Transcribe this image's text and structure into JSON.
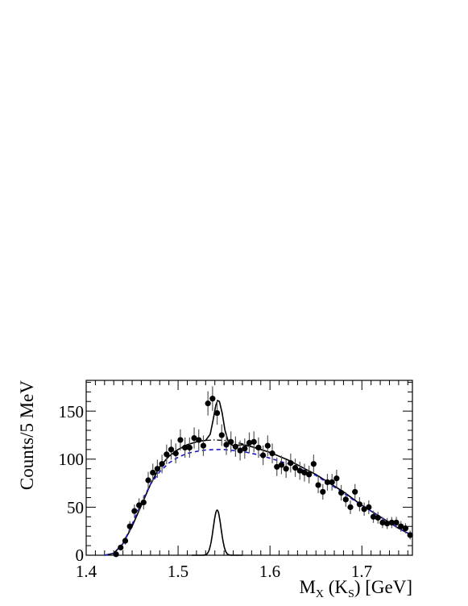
{
  "chart_data": {
    "type": "scatter",
    "title": "",
    "xlabel_parts": {
      "m": "M",
      "m_sub": "X",
      "open": " (K",
      "k_sub": "S",
      "close": ") [GeV]"
    },
    "ylabel": "Counts/5 MeV",
    "xlim": [
      1.4,
      1.755
    ],
    "ylim": [
      0,
      182
    ],
    "x_ticks": [
      "1.4",
      "1.5",
      "1.6",
      "1.7"
    ],
    "y_ticks": [
      "0",
      "50",
      "100",
      "150"
    ],
    "grid": false,
    "legend": "none",
    "colors": {
      "data": "#000000",
      "total_fit": "#000000",
      "background_blue": "#1a1acc",
      "background_black": "#000000",
      "signal": "#000000"
    },
    "series": [
      {
        "kind": "data_points_with_errors",
        "x": [
          1.4325,
          1.4375,
          1.4425,
          1.4475,
          1.4525,
          1.4575,
          1.4625,
          1.4675,
          1.4725,
          1.4775,
          1.4825,
          1.4875,
          1.4925,
          1.4975,
          1.5025,
          1.5075,
          1.5125,
          1.5175,
          1.5225,
          1.5275,
          1.5325,
          1.5375,
          1.5425,
          1.5475,
          1.5525,
          1.5575,
          1.5625,
          1.5675,
          1.5725,
          1.5775,
          1.5825,
          1.5875,
          1.5925,
          1.5975,
          1.6025,
          1.6075,
          1.6125,
          1.6175,
          1.6225,
          1.6275,
          1.6325,
          1.6375,
          1.6425,
          1.6475,
          1.6525,
          1.6575,
          1.6625,
          1.6675,
          1.6725,
          1.6775,
          1.6825,
          1.6875,
          1.6925,
          1.6975,
          1.7025,
          1.7075,
          1.7125,
          1.7175,
          1.7225,
          1.7275,
          1.7325,
          1.7375,
          1.7425,
          1.7475,
          1.7525
        ],
        "y": [
          1,
          8,
          15,
          30,
          46,
          52,
          55,
          78,
          86,
          90,
          95,
          105,
          110,
          106,
          120,
          112,
          112,
          122,
          120,
          114,
          158,
          163,
          148,
          125,
          115,
          118,
          113,
          109,
          111,
          117,
          118,
          112,
          104,
          114,
          106,
          92,
          94,
          90,
          96,
          91,
          88,
          86,
          84,
          95,
          73,
          66,
          76,
          76,
          80,
          65,
          58,
          50,
          66,
          53,
          48,
          50,
          40,
          39,
          34,
          33,
          34,
          34,
          30,
          28,
          21
        ],
        "yerr": [
          1,
          3,
          4,
          5.5,
          6.8,
          7.2,
          7.4,
          8.8,
          9.3,
          9.5,
          9.7,
          10.2,
          10.5,
          10.3,
          11,
          10.6,
          10.6,
          11,
          11,
          10.7,
          12.6,
          12.8,
          12.2,
          11.2,
          10.7,
          10.9,
          10.6,
          10.4,
          10.5,
          10.8,
          10.9,
          10.6,
          10.2,
          10.7,
          10.3,
          9.6,
          9.7,
          9.5,
          9.8,
          9.5,
          9.4,
          9.3,
          9.2,
          9.7,
          8.5,
          8.1,
          8.7,
          8.7,
          8.9,
          8.1,
          7.6,
          7.1,
          8.1,
          7.3,
          6.9,
          7.1,
          6.3,
          6.2,
          5.8,
          5.7,
          5.8,
          5.8,
          5.5,
          5.3,
          4.6
        ]
      },
      {
        "kind": "total_fit",
        "line": "solid",
        "x": [
          1.42,
          1.43,
          1.44,
          1.45,
          1.46,
          1.47,
          1.48,
          1.49,
          1.5,
          1.51,
          1.52,
          1.525,
          1.53,
          1.535,
          1.538,
          1.541,
          1.543,
          1.545,
          1.548,
          1.551,
          1.555,
          1.56,
          1.57,
          1.58,
          1.59,
          1.6,
          1.61,
          1.62,
          1.63,
          1.64,
          1.65,
          1.66,
          1.67,
          1.68,
          1.69,
          1.7,
          1.71,
          1.72,
          1.73,
          1.74,
          1.75,
          1.755
        ],
        "y": [
          0,
          2,
          12,
          30,
          52,
          74,
          92,
          103,
          110,
          115,
          118,
          119,
          119.5,
          126,
          140,
          156,
          161,
          160,
          148,
          130,
          117,
          114,
          115,
          113,
          110,
          107,
          103,
          99,
          94,
          89,
          84,
          78,
          72,
          66,
          59,
          52,
          46,
          40,
          34,
          28,
          23,
          20
        ]
      },
      {
        "kind": "background_dash_dotted",
        "line": "dash-dot",
        "x": [
          1.42,
          1.43,
          1.44,
          1.45,
          1.46,
          1.47,
          1.48,
          1.49,
          1.5,
          1.51,
          1.52,
          1.53,
          1.54,
          1.55,
          1.56,
          1.57,
          1.58,
          1.59,
          1.6,
          1.61,
          1.62,
          1.63,
          1.64,
          1.65,
          1.66,
          1.67,
          1.68,
          1.69,
          1.7,
          1.71,
          1.72,
          1.73,
          1.74,
          1.75,
          1.755
        ],
        "y": [
          0,
          2,
          12,
          30,
          52,
          74,
          92,
          103,
          110,
          115,
          118,
          119.5,
          120,
          119.5,
          118,
          116,
          113,
          110,
          107,
          103,
          99,
          94,
          89,
          84,
          78,
          72,
          66,
          59,
          52,
          46,
          40,
          34,
          28,
          23,
          20
        ]
      },
      {
        "kind": "background_dashed_blue",
        "line": "dashed",
        "x": [
          1.42,
          1.43,
          1.44,
          1.45,
          1.46,
          1.47,
          1.48,
          1.49,
          1.5,
          1.51,
          1.52,
          1.53,
          1.54,
          1.55,
          1.56,
          1.57,
          1.58,
          1.59,
          1.6,
          1.61,
          1.62,
          1.63,
          1.64,
          1.65,
          1.66,
          1.67,
          1.68,
          1.69,
          1.7,
          1.71,
          1.72,
          1.73,
          1.74,
          1.75,
          1.755
        ],
        "y": [
          0,
          2,
          12,
          32,
          55,
          74,
          87,
          96,
          102,
          106,
          108,
          109.5,
          110,
          110,
          109,
          108,
          106,
          104,
          101,
          98,
          95,
          91,
          87,
          83,
          77,
          71,
          65,
          58,
          52,
          46,
          40,
          34,
          28,
          23,
          20
        ]
      },
      {
        "kind": "signal_gaussian",
        "line": "solid",
        "mean": 1.5425,
        "sigma": 0.0042,
        "amplitude": 47
      }
    ]
  }
}
